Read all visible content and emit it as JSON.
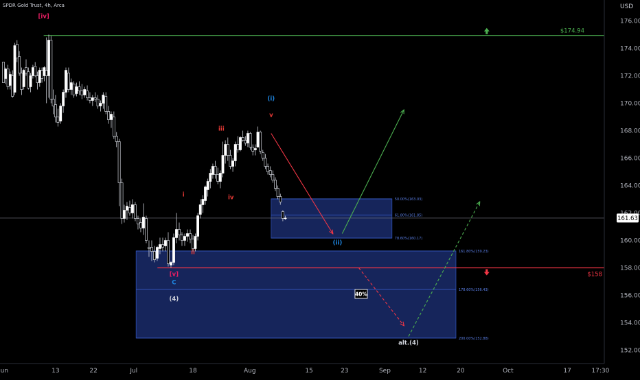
{
  "header": {
    "symbol_label": "SPDR Gold Trust, 4h, Arca"
  },
  "chart_data": {
    "type": "candlestick",
    "y_axis": {
      "unit_label": "USD",
      "range": [
        151.2,
        177.2
      ],
      "ticks": [
        176,
        174,
        172,
        170,
        168,
        166,
        164,
        162,
        160,
        158,
        156,
        154,
        152
      ]
    },
    "x_axis": {
      "ticks": [
        {
          "label": "Jun",
          "bar": 0
        },
        {
          "label": "13",
          "bar": 22
        },
        {
          "label": "22",
          "bar": 38
        },
        {
          "label": "Jul",
          "bar": 55
        },
        {
          "label": "18",
          "bar": 80
        },
        {
          "label": "Aug",
          "bar": 104
        },
        {
          "label": "15",
          "bar": 129
        },
        {
          "label": "23",
          "bar": 144
        },
        {
          "label": "Sep",
          "bar": 161
        },
        {
          "label": "12",
          "bar": 177
        },
        {
          "label": "20",
          "bar": 193
        },
        {
          "label": "Oct",
          "bar": 213
        },
        {
          "label": "17",
          "bar": 238
        },
        {
          "label": "17:30",
          "bar": 252
        }
      ]
    },
    "bar_count": 262,
    "last_price": {
      "value": 161.63,
      "label": "161.63"
    },
    "candles": [
      [
        173,
        173,
        171.6,
        171.5
      ],
      [
        171.8,
        172.6,
        171.4,
        172.5
      ],
      [
        172.5,
        172.8,
        171.0,
        171.2
      ],
      [
        171.3,
        172.3,
        171,
        172.1
      ],
      [
        172.0,
        172.4,
        170.4,
        170.5
      ],
      [
        170.8,
        174.4,
        170.6,
        174.2
      ],
      [
        174.3,
        174.6,
        173.0,
        173.3
      ],
      [
        173.4,
        173.8,
        172,
        172.2
      ],
      [
        172.2,
        172.6,
        170.6,
        171.0
      ],
      [
        171.2,
        172.5,
        171.0,
        172.4
      ],
      [
        172.6,
        173.2,
        172.0,
        172.2
      ],
      [
        172.3,
        172.6,
        171.0,
        171.1
      ],
      [
        171.2,
        172.2,
        170.8,
        172.0
      ],
      [
        172.0,
        172.8,
        171.8,
        172.6
      ],
      [
        172.7,
        173.0,
        171.9,
        172.0
      ],
      [
        172.0,
        172.3,
        171.0,
        171.5
      ],
      [
        171.5,
        172.6,
        171.2,
        172.4
      ],
      [
        172.4,
        172.6,
        171.5,
        171.8
      ],
      [
        172.0,
        172.7,
        171.6,
        172.6
      ],
      [
        172.4,
        174.8,
        170.0,
        172.0
      ],
      [
        172.0,
        175.0,
        170.4,
        174.6
      ],
      [
        174.6,
        174.9,
        170.0,
        170.3
      ],
      [
        170.3,
        171.0,
        169.2,
        169.8
      ],
      [
        169.9,
        170.6,
        168.6,
        169.0
      ],
      [
        169.0,
        169.6,
        168.3,
        168.6
      ],
      [
        168.7,
        170.0,
        168.5,
        169.8
      ],
      [
        169.8,
        171.0,
        169.3,
        170.8
      ],
      [
        170.8,
        172.6,
        170.4,
        172.4
      ],
      [
        172.2,
        172.6,
        170.8,
        171.0
      ],
      [
        171.0,
        171.8,
        170.6,
        171.5
      ],
      [
        171.4,
        171.6,
        170.4,
        170.6
      ],
      [
        170.7,
        171.5,
        170.5,
        171.2
      ],
      [
        171.2,
        171.6,
        170.6,
        170.9
      ],
      [
        170.9,
        171.4,
        170.3,
        170.6
      ],
      [
        170.6,
        171.2,
        170.4,
        171.0
      ],
      [
        170.9,
        171.3,
        170.2,
        170.4
      ],
      [
        170.4,
        170.8,
        170.0,
        170.2
      ],
      [
        170.2,
        170.6,
        169.8,
        170.4
      ],
      [
        170.4,
        170.8,
        170.1,
        170.3
      ],
      [
        170.3,
        170.6,
        169.6,
        169.8
      ],
      [
        169.8,
        170.2,
        169.4,
        170.0
      ],
      [
        170.0,
        170.8,
        169.6,
        170.6
      ],
      [
        170.5,
        170.8,
        169.2,
        169.4
      ],
      [
        169.4,
        169.8,
        168.5,
        168.8
      ],
      [
        168.8,
        169.4,
        168.2,
        169.2
      ],
      [
        169.0,
        169.4,
        167.4,
        167.6
      ],
      [
        167.6,
        167.9,
        166.8,
        167.2
      ],
      [
        167.2,
        167.4,
        162.5,
        164.2
      ],
      [
        164.2,
        164.5,
        161.2,
        161.6
      ],
      [
        161.6,
        162.6,
        161.3,
        162.2
      ],
      [
        162.2,
        162.8,
        161.5,
        162.5
      ],
      [
        162.4,
        162.9,
        161.8,
        162.0
      ],
      [
        162.0,
        163.0,
        161.6,
        162.6
      ],
      [
        162.6,
        162.8,
        161.4,
        161.6
      ],
      [
        161.6,
        161.8,
        160.8,
        161.2
      ],
      [
        161.3,
        161.6,
        160.6,
        160.9
      ],
      [
        160.9,
        162.7,
        160.4,
        161.7
      ],
      [
        161.6,
        161.8,
        159.8,
        160.0
      ],
      [
        159.5,
        160.0,
        158.8,
        159.4
      ],
      [
        159.5,
        160.0,
        158.5,
        159.2
      ],
      [
        159.2,
        159.6,
        158.4,
        158.6
      ],
      [
        158.7,
        159.6,
        158.5,
        159.5
      ],
      [
        159.4,
        160.2,
        159.0,
        159.7
      ],
      [
        159.7,
        160.2,
        159.2,
        159.5
      ],
      [
        159.6,
        160.2,
        159.2,
        160.0
      ],
      [
        160.0,
        160.6,
        158.1,
        158.3
      ],
      [
        158.2,
        158.5,
        158.0,
        158.4
      ],
      [
        158.4,
        160.5,
        158.2,
        160.2
      ],
      [
        160.2,
        162.0,
        159.8,
        160.8
      ],
      [
        160.8,
        161.3,
        160.0,
        160.4
      ],
      [
        160.4,
        160.6,
        159.6,
        160.0
      ],
      [
        160.0,
        160.5,
        159.6,
        160.3
      ],
      [
        160.3,
        160.8,
        159.9,
        160.5
      ],
      [
        160.5,
        160.8,
        159.8,
        160.1
      ],
      [
        160.1,
        160.4,
        159.2,
        159.4
      ],
      [
        159.4,
        160.5,
        159.2,
        160.3
      ],
      [
        160.3,
        162.0,
        160.0,
        161.8
      ],
      [
        161.9,
        163.0,
        161.6,
        162.6
      ],
      [
        162.6,
        163.3,
        162.0,
        163.0
      ],
      [
        162.9,
        164.0,
        162.6,
        163.9
      ],
      [
        163.7,
        164.5,
        163.2,
        164.3
      ],
      [
        164.3,
        165.2,
        163.8,
        164.9
      ],
      [
        164.8,
        165.6,
        164.5,
        165.4
      ],
      [
        165.4,
        165.8,
        164.5,
        164.8
      ],
      [
        164.8,
        165.3,
        164.1,
        164.3
      ],
      [
        164.3,
        165.1,
        163.8,
        164.9
      ],
      [
        164.9,
        167.2,
        164.6,
        166.2
      ],
      [
        166.2,
        167.3,
        165.6,
        167.0
      ],
      [
        167.0,
        167.5,
        165.8,
        166.2
      ],
      [
        166.2,
        166.6,
        165.2,
        165.4
      ],
      [
        165.4,
        166.0,
        165.0,
        165.8
      ],
      [
        165.8,
        167.2,
        165.4,
        167.0
      ],
      [
        167.0,
        167.6,
        166.4,
        166.6
      ],
      [
        166.6,
        167.6,
        166.5,
        167.5
      ],
      [
        167.5,
        168.0,
        167.2,
        167.3
      ],
      [
        167.3,
        167.6,
        166.9,
        167.1
      ],
      [
        167.1,
        168.0,
        166.8,
        167.8
      ],
      [
        167.8,
        167.9,
        166.6,
        166.8
      ],
      [
        166.8,
        167.0,
        166.2,
        166.5
      ],
      [
        166.6,
        167.0,
        166.2,
        166.7
      ],
      [
        166.8,
        168.3,
        167.0,
        167.9
      ],
      [
        167.9,
        168.0,
        166.3,
        166.5
      ],
      [
        166.4,
        166.6,
        165.8,
        166.0
      ],
      [
        166.0,
        166.3,
        165.2,
        165.4
      ],
      [
        165.4,
        165.6,
        164.8,
        165.0
      ],
      [
        165.1,
        165.4,
        164.6,
        164.8
      ],
      [
        164.8,
        165.1,
        164.2,
        164.4
      ],
      [
        164.4,
        164.6,
        163.6,
        163.8
      ],
      [
        163.8,
        164.0,
        163.0,
        163.2
      ],
      [
        163.2,
        163.4,
        162.6,
        162.8
      ],
      [
        162.1,
        162.2,
        161.4,
        161.6
      ],
      [
        161.6,
        161.8,
        161.5,
        161.63
      ]
    ],
    "candle_bar_map": {
      "first_bar": 0,
      "segments": [
        {
          "from": 0,
          "to": 23,
          "bar_start": 0,
          "bar_end": 22
        },
        {
          "from": 24,
          "to": 48,
          "bar_start": 23,
          "bar_end": 50
        },
        {
          "from": 49,
          "to": 74,
          "bar_start": 51,
          "bar_end": 80
        },
        {
          "from": 75,
          "to": 111,
          "bar_start": 81,
          "bar_end": 119
        }
      ]
    },
    "wave_labels": [
      {
        "text": "[iv]",
        "color": "#e91e63",
        "bar": 17,
        "price": 176.2
      },
      {
        "text": "i",
        "color": "#e53935",
        "bar": 76,
        "price": 163.2
      },
      {
        "text": "ii",
        "color": "#e53935",
        "bar": 80,
        "price": 159.0
      },
      {
        "text": "iii",
        "color": "#e53935",
        "bar": 92,
        "price": 168.0
      },
      {
        "text": "iv",
        "color": "#e53935",
        "bar": 96,
        "price": 163.0
      },
      {
        "text": "v",
        "color": "#e53935",
        "bar": 113,
        "price": 169.0
      },
      {
        "text": "(i)",
        "color": "#1e88e5",
        "bar": 113,
        "price": 170.2
      },
      {
        "text": "[v]",
        "color": "#e91e63",
        "bar": 72,
        "price": 157.4
      },
      {
        "text": "C",
        "color": "#1e88e5",
        "bar": 72,
        "price": 156.8
      },
      {
        "text": "(4)",
        "color": "#d1d4dc",
        "bar": 72,
        "price": 155.6
      },
      {
        "text": "(ii)",
        "color": "#1e88e5",
        "bar": 141,
        "price": 159.7
      },
      {
        "text": "alt.(4)",
        "color": "#d1d4dc",
        "bar": 171,
        "price": 152.4
      }
    ],
    "levels": [
      {
        "name": "resistance",
        "price": 174.94,
        "label": "$174.94",
        "color": "#4caf50",
        "bar_start": 17,
        "bar_end": 224,
        "arrow": "up",
        "arrow_bar": 204
      },
      {
        "name": "support",
        "price": 158,
        "label": "$158",
        "color": "#f23645",
        "bar_start": 65,
        "bar_end": 224,
        "arrow": "down",
        "arrow_bar": 204
      }
    ],
    "zones": [
      {
        "name": "upper-fib-zone",
        "bar_start": 113,
        "bar_end": 164,
        "price_top": 163.03,
        "price_bottom": 160.17,
        "fibs": [
          {
            "price": 163.03,
            "label": "50.00%(163.03)"
          },
          {
            "price": 161.85,
            "label": "61.80%(161.85)"
          },
          {
            "price": 160.17,
            "label": "78.60%(160.17)"
          }
        ]
      },
      {
        "name": "lower-fib-zone",
        "bar_start": 56,
        "bar_end": 191,
        "price_top": 159.23,
        "price_bottom": 152.88,
        "fibs": [
          {
            "price": 159.23,
            "label": "161.80%(159.23)"
          },
          {
            "price": 156.43,
            "label": "178.60%(156.43)"
          },
          {
            "price": 152.88,
            "label": "200.00%(152.88)"
          }
        ]
      }
    ],
    "projections": [
      {
        "name": "red-down-arrow",
        "color": "#f23645",
        "dashed": false,
        "from": [
          113,
          167.8
        ],
        "to": [
          139,
          160.5
        ],
        "arrowhead": true
      },
      {
        "name": "green-up-arrow",
        "color": "#4caf50",
        "dashed": false,
        "from": [
          143,
          160.5
        ],
        "to": [
          169,
          169.5
        ],
        "arrowhead": true
      },
      {
        "name": "red-dashed-down",
        "color": "#f23645",
        "dashed": true,
        "from": [
          150,
          158.0
        ],
        "to": [
          169,
          153.8
        ],
        "arrowhead": true
      },
      {
        "name": "green-dashed-up",
        "color": "#4caf50",
        "dashed": true,
        "from": [
          171,
          153.0
        ],
        "to": [
          201,
          162.8
        ],
        "arrowhead": true
      }
    ],
    "probability_badge": {
      "text": "40%",
      "bar": 151,
      "price": 156.1
    }
  }
}
